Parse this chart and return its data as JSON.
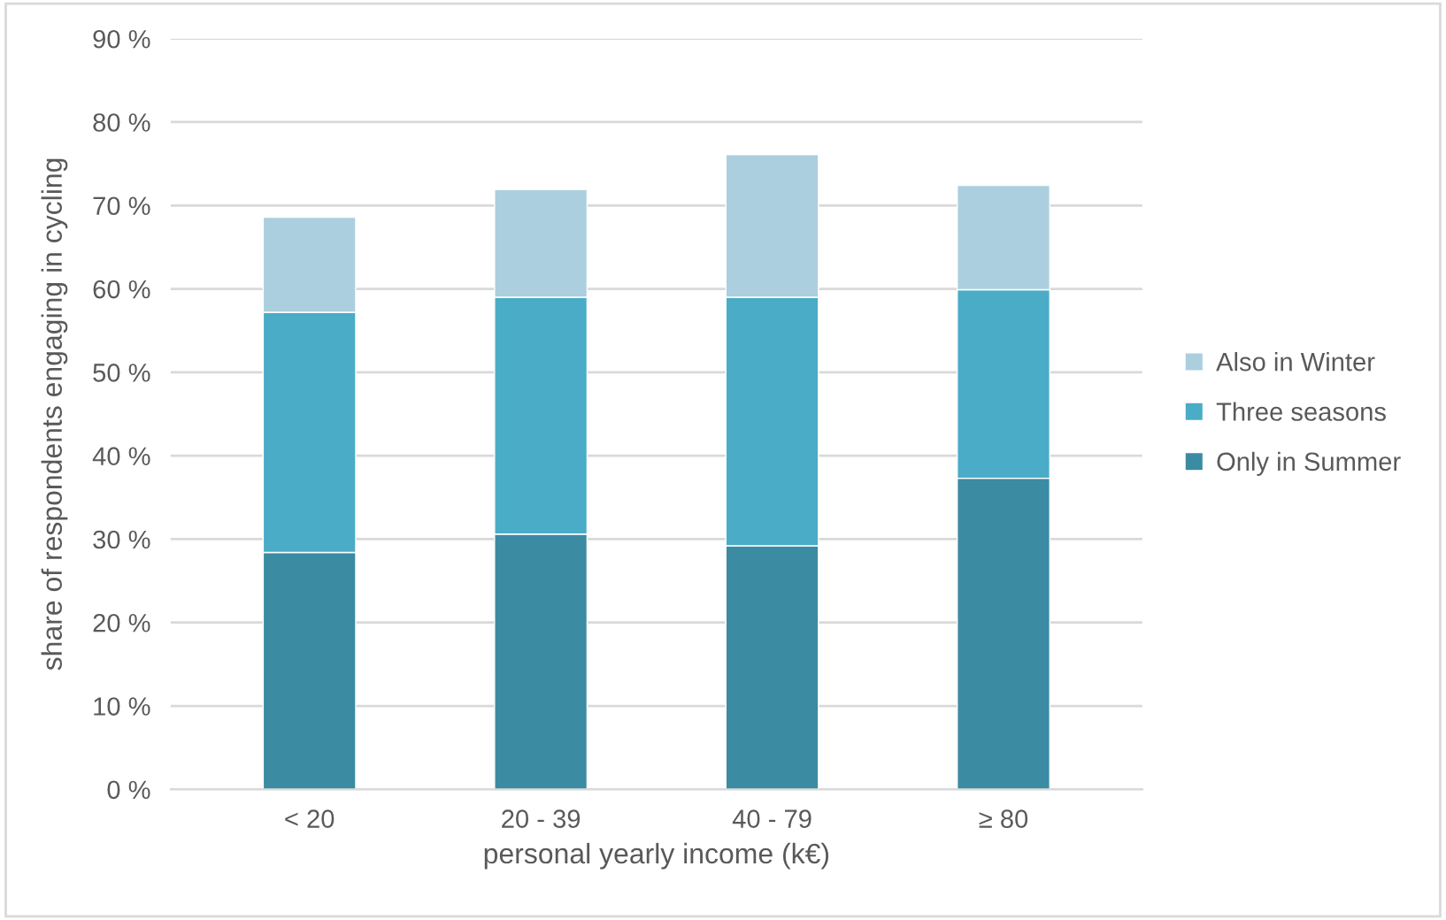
{
  "chart_data": {
    "type": "bar",
    "stacked": true,
    "xlabel": "personal yearly income (k€)",
    "ylabel": "share of respondents engaging in cycling",
    "categories": [
      "< 20",
      "20 - 39",
      "40 - 79",
      "≥ 80"
    ],
    "series": [
      {
        "name": "Only in Summer",
        "color": "#3b8ba2",
        "values": [
          28.4,
          30.6,
          29.2,
          37.3
        ]
      },
      {
        "name": "Three seasons",
        "color": "#4aacc6",
        "values": [
          28.8,
          28.4,
          29.8,
          22.6
        ]
      },
      {
        "name": "Also in Winter",
        "color": "#abcfde",
        "values": [
          11.4,
          12.9,
          17.1,
          12.5
        ]
      }
    ],
    "ylim": [
      0,
      90
    ],
    "yticks": [
      {
        "value": 0,
        "label": "0 %"
      },
      {
        "value": 10,
        "label": "10 %"
      },
      {
        "value": 20,
        "label": "20 %"
      },
      {
        "value": 30,
        "label": "30 %"
      },
      {
        "value": 40,
        "label": "40 %"
      },
      {
        "value": 50,
        "label": "50 %"
      },
      {
        "value": 60,
        "label": "60 %"
      },
      {
        "value": 70,
        "label": "70 %"
      },
      {
        "value": 80,
        "label": "80 %"
      },
      {
        "value": 90,
        "label": "90 %"
      }
    ],
    "grid": "y",
    "legend": "right"
  }
}
